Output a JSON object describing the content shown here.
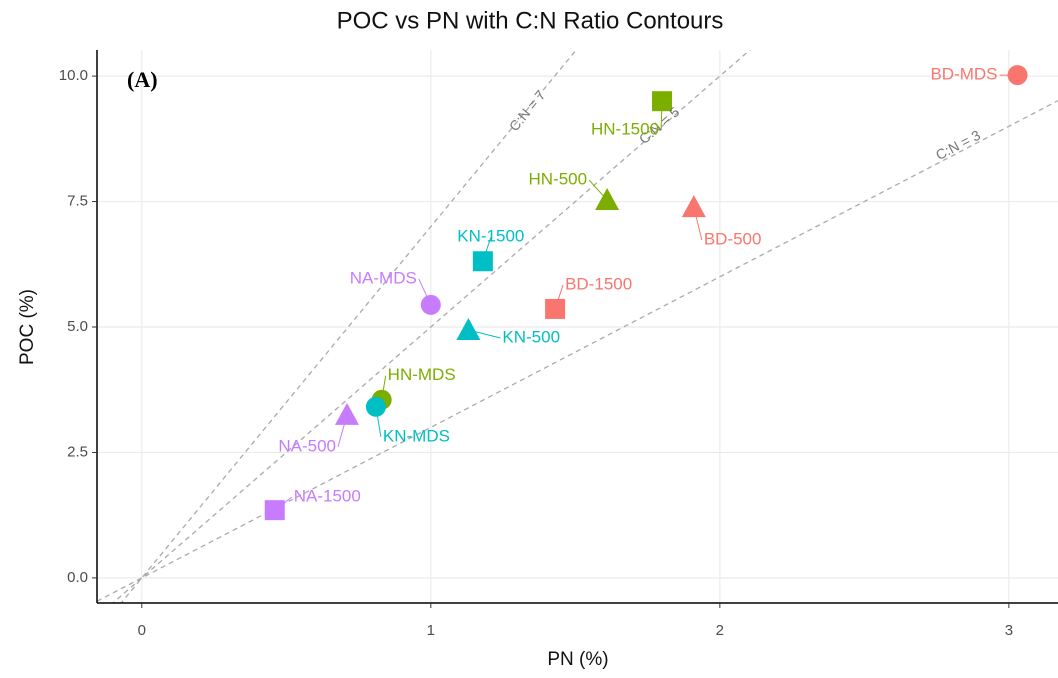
{
  "chart_data": {
    "type": "scatter",
    "title": "POC vs PN with C:N Ratio Contours",
    "panel_label": "(A)",
    "x_label": "PN (%)",
    "y_label": "POC (%)",
    "xlim": [
      -0.155,
      3.17
    ],
    "ylim": [
      -0.5,
      10.52
    ],
    "xticks": [
      0,
      1,
      2,
      3
    ],
    "yticks": [
      {
        "value": 0,
        "label": "0.0"
      },
      2.5,
      {
        "value": 5,
        "label": "5.0"
      },
      7.5,
      {
        "value": 10,
        "label": "10.0"
      }
    ],
    "grid": true,
    "contours": [
      {
        "ratio": 7,
        "label": "C:N = 7"
      },
      {
        "ratio": 5,
        "label": "C:N = 5"
      },
      {
        "ratio": 3,
        "label": "C:N = 3"
      }
    ],
    "series": [
      {
        "color": "#F8766D",
        "labels": [
          "BD-MDS",
          "BD-500",
          "BD-1500"
        ],
        "markers": [
          "circle",
          "triangle",
          "square"
        ],
        "x": [
          3.03,
          1.91,
          1.43
        ],
        "values": [
          10.02,
          7.39,
          5.36
        ]
      },
      {
        "color": "#7CAE00",
        "labels": [
          "HN-1500",
          "HN-500",
          "HN-MDS"
        ],
        "markers": [
          "square",
          "triangle",
          "circle"
        ],
        "x": [
          1.8,
          1.61,
          0.83
        ],
        "values": [
          9.5,
          7.53,
          3.55
        ]
      },
      {
        "color": "#00BFC4",
        "labels": [
          "KN-1500",
          "KN-500",
          "KN-MDS"
        ],
        "markers": [
          "square",
          "triangle",
          "circle"
        ],
        "x": [
          1.18,
          1.13,
          0.81
        ],
        "values": [
          6.31,
          4.94,
          3.41
        ]
      },
      {
        "color": "#C77CFF",
        "labels": [
          "NA-MDS",
          "NA-500",
          "NA-1500"
        ],
        "markers": [
          "circle",
          "triangle",
          "square"
        ],
        "x": [
          1.0,
          0.71,
          0.46
        ],
        "values": [
          5.44,
          3.25,
          1.35
        ]
      }
    ]
  }
}
